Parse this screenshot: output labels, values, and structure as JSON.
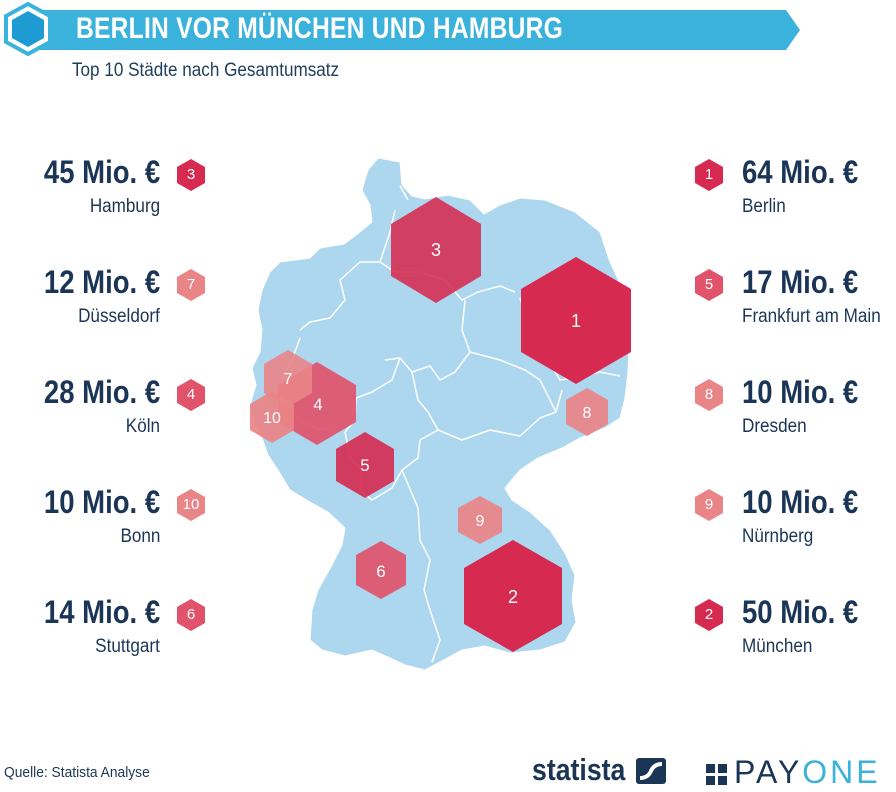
{
  "header": {
    "title": "BERLIN VOR MÜNCHEN UND HAMBURG",
    "subtitle": "Top 10 Städte nach Gesamtumsatz"
  },
  "colors": {
    "banner": "#3bb2dc",
    "logo_hex": "#1f9bd3",
    "map_fill": "#add6ef",
    "rank_strong": "#d62a50",
    "rank_medium": "#e0536b",
    "rank_light": "#e98487",
    "text": "#1b3556"
  },
  "cities_left": [
    {
      "rank": "3",
      "value": "45 Mio. €",
      "city": "Hamburg",
      "shade": "strong"
    },
    {
      "rank": "7",
      "value": "12 Mio. €",
      "city": "Düsseldorf",
      "shade": "light"
    },
    {
      "rank": "4",
      "value": "28 Mio. €",
      "city": "Köln",
      "shade": "medium"
    },
    {
      "rank": "10",
      "value": "10 Mio. €",
      "city": "Bonn",
      "shade": "light"
    },
    {
      "rank": "6",
      "value": "14 Mio. €",
      "city": "Stuttgart",
      "shade": "medium"
    }
  ],
  "cities_right": [
    {
      "rank": "1",
      "value": "64 Mio. €",
      "city": "Berlin",
      "shade": "strong"
    },
    {
      "rank": "5",
      "value": "17 Mio. €",
      "city": "Frankfurt am Main",
      "shade": "medium"
    },
    {
      "rank": "8",
      "value": "10 Mio. €",
      "city": "Dresden",
      "shade": "light"
    },
    {
      "rank": "9",
      "value": "10 Mio. €",
      "city": "Nürnberg",
      "shade": "light"
    },
    {
      "rank": "2",
      "value": "50 Mio. €",
      "city": "München",
      "shade": "strong"
    }
  ],
  "map_markers": [
    {
      "rank": "1",
      "shade": "strong"
    },
    {
      "rank": "2",
      "shade": "strong"
    },
    {
      "rank": "3",
      "shade": "strong"
    },
    {
      "rank": "4",
      "shade": "medium"
    },
    {
      "rank": "5",
      "shade": "medium"
    },
    {
      "rank": "6",
      "shade": "medium"
    },
    {
      "rank": "7",
      "shade": "light"
    },
    {
      "rank": "8",
      "shade": "light"
    },
    {
      "rank": "9",
      "shade": "light"
    },
    {
      "rank": "10",
      "shade": "light"
    }
  ],
  "footer": {
    "source": "Quelle: Statista Analyse",
    "statista": "statista",
    "payone_pay": "PAY",
    "payone_one": "ONE"
  }
}
